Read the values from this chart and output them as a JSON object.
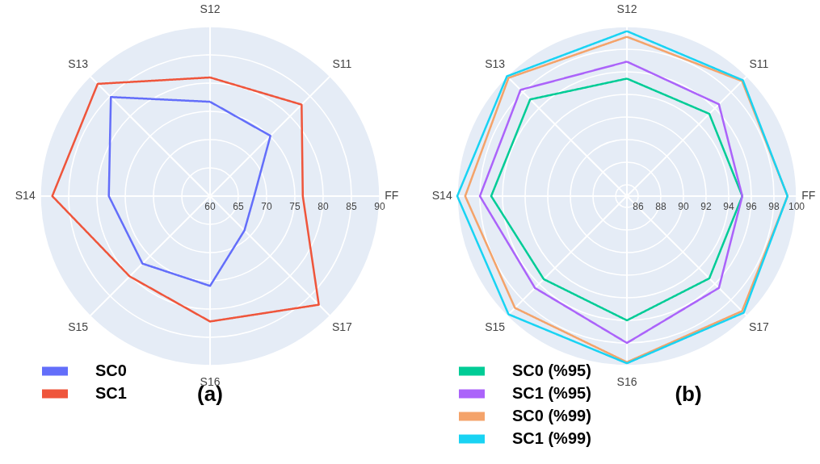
{
  "chart_data": [
    {
      "type": "radar",
      "title": "(a)",
      "categories": [
        "S12",
        "S11",
        "FF",
        "S17",
        "S16",
        "S15",
        "S14",
        "S13"
      ],
      "ylim": [
        60,
        90
      ],
      "yticks": [
        60,
        65,
        70,
        75,
        80,
        85,
        90
      ],
      "grid": true,
      "legend": "bottom left",
      "series": [
        {
          "name": "SC0",
          "color": "#636efa",
          "values": [
            76.7,
            75.1,
            67.8,
            68.6,
            75.9,
            76.9,
            77.9,
            84.8
          ]
        },
        {
          "name": "SC1",
          "color": "#ef553b",
          "values": [
            81.0,
            82.9,
            76.4,
            87.2,
            82.2,
            80.1,
            87.9,
            88.1
          ]
        }
      ]
    },
    {
      "type": "radar",
      "title": "(b)",
      "categories": [
        "S12",
        "S11",
        "FF",
        "S17",
        "S16",
        "S15",
        "S14",
        "S13"
      ],
      "ylim": [
        85,
        100
      ],
      "yticks": [
        86,
        88,
        90,
        92,
        94,
        96,
        98,
        100
      ],
      "grid": true,
      "legend": "bottom left",
      "series": [
        {
          "name": "SC0 (%95)",
          "color": "#00cc96",
          "values": [
            95.4,
            95.3,
            95.2,
            95.3,
            96.0,
            95.4,
            97.0,
            97.1
          ]
        },
        {
          "name": "SC1 (%95)",
          "color": "#ab63fa",
          "values": [
            96.9,
            96.5,
            95.2,
            96.5,
            98.0,
            96.5,
            98.0,
            98.3
          ]
        },
        {
          "name": "SC0 (%99)",
          "color": "#f4a36a",
          "values": [
            99.1,
            99.4,
            99.2,
            99.4,
            99.7,
            99.0,
            99.3,
            99.8
          ]
        },
        {
          "name": "SC1 (%99)",
          "color": "#19d3f3",
          "values": [
            99.6,
            99.5,
            99.2,
            99.6,
            99.8,
            99.8,
            100.0,
            100.0
          ]
        }
      ]
    }
  ]
}
